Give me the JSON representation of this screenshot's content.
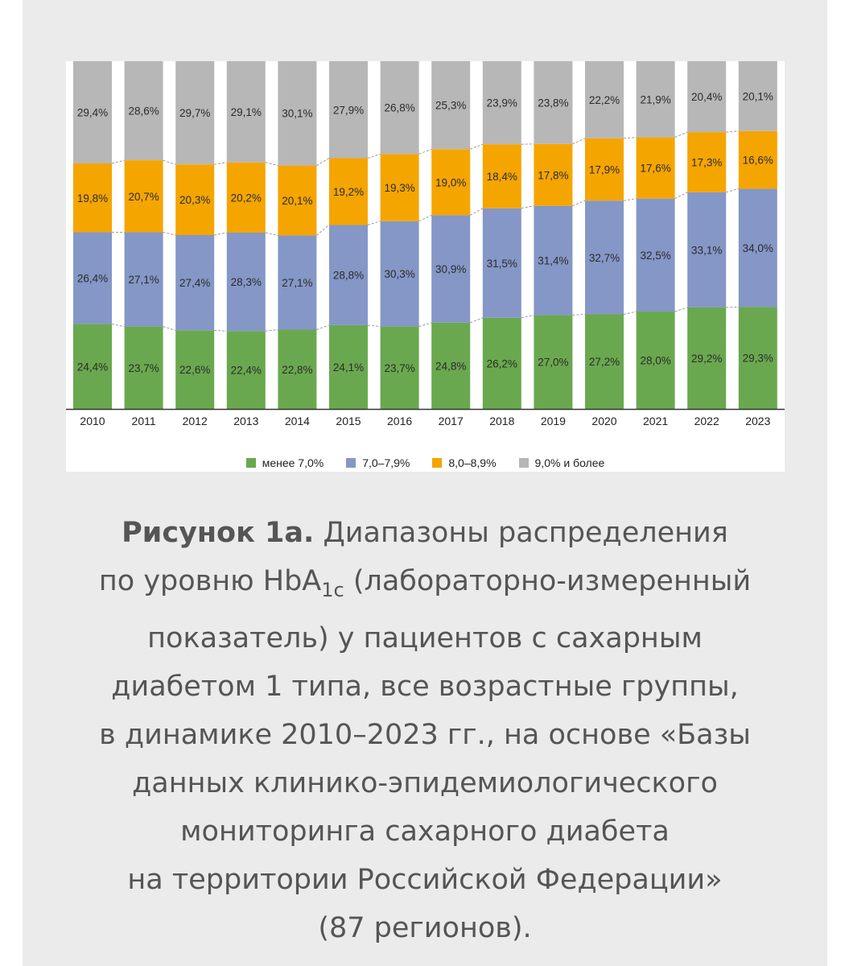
{
  "chart_data": {
    "type": "bar",
    "stacked": true,
    "categories": [
      "2010",
      "2011",
      "2012",
      "2013",
      "2014",
      "2015",
      "2016",
      "2017",
      "2018",
      "2019",
      "2020",
      "2021",
      "2022",
      "2023"
    ],
    "series": [
      {
        "name": "менее 7,0%",
        "color": "#6aa84f",
        "values": [
          24.4,
          23.7,
          22.6,
          22.4,
          22.8,
          24.1,
          23.7,
          24.8,
          26.2,
          27.0,
          27.2,
          28.0,
          29.2,
          29.3
        ],
        "labels": [
          "24,4%",
          "23,7%",
          "22,6%",
          "22,4%",
          "22,8%",
          "24,1%",
          "23,7%",
          "24,8%",
          "26,2%",
          "27,0%",
          "27,2%",
          "28,0%",
          "29,2%",
          "29,3%"
        ]
      },
      {
        "name": "7,0–7,9%",
        "color": "#8497c6",
        "values": [
          26.4,
          27.1,
          27.4,
          28.3,
          27.1,
          28.8,
          30.3,
          30.9,
          31.5,
          31.4,
          32.7,
          32.5,
          33.1,
          34.0
        ],
        "labels": [
          "26,4%",
          "27,1%",
          "27,4%",
          "28,3%",
          "27,1%",
          "28,8%",
          "30,3%",
          "30,9%",
          "31,5%",
          "31,4%",
          "32,7%",
          "32,5%",
          "33,1%",
          "34,0%"
        ]
      },
      {
        "name": "8,0–8,9%",
        "color": "#f5a500",
        "values": [
          19.8,
          20.7,
          20.3,
          20.2,
          20.1,
          19.2,
          19.3,
          19.0,
          18.4,
          17.8,
          17.9,
          17.6,
          17.3,
          16.6
        ],
        "labels": [
          "19,8%",
          "20,7%",
          "20,3%",
          "20,2%",
          "20,1%",
          "19,2%",
          "19,3%",
          "19,0%",
          "18,4%",
          "17,8%",
          "17,9%",
          "17,6%",
          "17,3%",
          "16,6%"
        ]
      },
      {
        "name": "9,0% и более",
        "color": "#b7b7b7",
        "values": [
          29.4,
          28.6,
          29.7,
          29.1,
          30.1,
          27.9,
          26.8,
          25.3,
          23.9,
          23.8,
          22.2,
          21.9,
          20.4,
          20.1
        ],
        "labels": [
          "29,4%",
          "28,6%",
          "29,7%",
          "29,1%",
          "30,1%",
          "27,9%",
          "26,8%",
          "25,3%",
          "23,9%",
          "23,8%",
          "22,2%",
          "21,9%",
          "20,4%",
          "20,1%"
        ]
      }
    ],
    "ylim": [
      0,
      100
    ]
  },
  "caption": {
    "bold": "Рисунок 1а.",
    "line1": " Диапазоны распределения",
    "line2_pre": "по уровню HbA",
    "line2_sub": "1c",
    "line2_post": " (лабораторно-измеренный",
    "line3": "показатель) у пациентов с сахарным",
    "line4": "диабетом 1 типа, все возрастные группы,",
    "line5": "в динамике 2010–2023 гг., на основе «Базы",
    "line6": "данных клинико-эпидемиологического",
    "line7": "мониторинга сахарного диабета",
    "line8": "на территории Российской Федерации»",
    "line9": "(87 регионов)."
  }
}
